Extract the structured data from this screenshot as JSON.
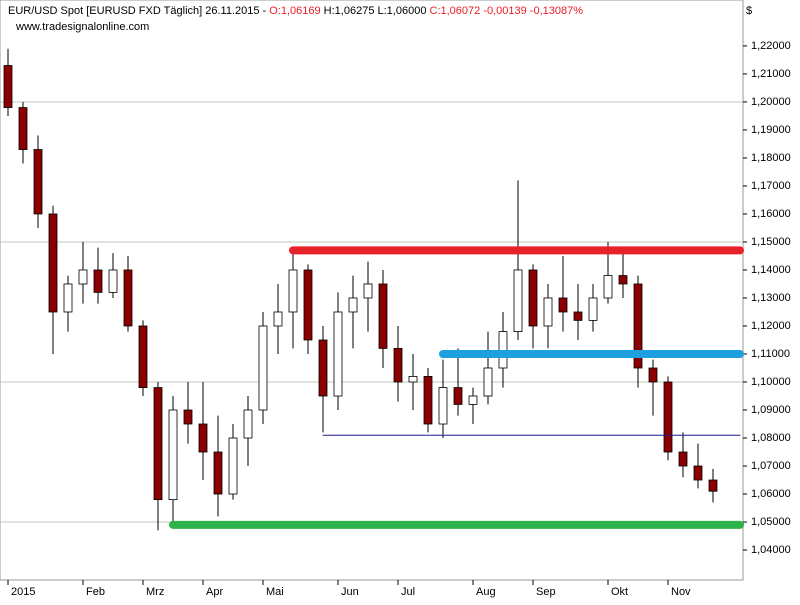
{
  "chart_data": {
    "type": "candlestick",
    "header": {
      "title": "EUR/USD Spot [EURUSD FXD  Täglich] 26.11.2015 - ",
      "open": "O:1,06169",
      "high_low": " H:1,06275 L:1,06000 ",
      "close_change": "C:1,06072 -0,00139 -0,13087%"
    },
    "source": "www.tradesignalonline.com",
    "y_unit": "$",
    "categories": [
      "2015",
      null,
      null,
      null,
      null,
      "Feb",
      null,
      null,
      null,
      "Mrz",
      null,
      null,
      null,
      "Apr",
      null,
      null,
      null,
      "Mai",
      null,
      null,
      null,
      null,
      "Jun",
      null,
      null,
      null,
      "Jul",
      null,
      null,
      null,
      null,
      "Aug",
      null,
      null,
      null,
      "Sep",
      null,
      null,
      null,
      null,
      "Okt",
      null,
      null,
      null,
      "Nov",
      null,
      null,
      null
    ],
    "open": [
      1.213,
      1.198,
      1.183,
      1.16,
      1.125,
      1.135,
      1.14,
      1.132,
      1.14,
      1.12,
      1.098,
      1.058,
      1.09,
      1.085,
      1.075,
      1.06,
      1.08,
      1.09,
      1.12,
      1.125,
      1.14,
      1.115,
      1.095,
      1.125,
      1.13,
      1.135,
      1.112,
      1.1,
      1.102,
      1.085,
      1.098,
      1.092,
      1.095,
      1.105,
      1.118,
      1.14,
      1.12,
      1.13,
      1.125,
      1.122,
      1.13,
      1.138,
      1.135,
      1.105,
      1.1,
      1.075,
      1.07,
      1.065
    ],
    "high": [
      1.219,
      1.2,
      1.188,
      1.163,
      1.138,
      1.15,
      1.148,
      1.146,
      1.145,
      1.122,
      1.1,
      1.095,
      1.1,
      1.1,
      1.088,
      1.085,
      1.095,
      1.125,
      1.135,
      1.147,
      1.142,
      1.12,
      1.132,
      1.138,
      1.143,
      1.14,
      1.12,
      1.11,
      1.105,
      1.108,
      1.112,
      1.098,
      1.118,
      1.125,
      1.172,
      1.142,
      1.135,
      1.145,
      1.135,
      1.135,
      1.15,
      1.148,
      1.138,
      1.108,
      1.102,
      1.082,
      1.078,
      1.069
    ],
    "low": [
      1.195,
      1.178,
      1.155,
      1.11,
      1.118,
      1.128,
      1.128,
      1.13,
      1.118,
      1.095,
      1.047,
      1.05,
      1.078,
      1.065,
      1.052,
      1.058,
      1.07,
      1.085,
      1.11,
      1.112,
      1.11,
      1.082,
      1.09,
      1.112,
      1.118,
      1.105,
      1.093,
      1.09,
      1.082,
      1.08,
      1.088,
      1.085,
      1.092,
      1.098,
      1.115,
      1.112,
      1.112,
      1.118,
      1.115,
      1.118,
      1.128,
      1.13,
      1.098,
      1.088,
      1.072,
      1.066,
      1.062,
      1.057
    ],
    "close": [
      1.198,
      1.183,
      1.16,
      1.125,
      1.135,
      1.14,
      1.132,
      1.14,
      1.12,
      1.098,
      1.058,
      1.09,
      1.085,
      1.075,
      1.06,
      1.08,
      1.09,
      1.12,
      1.125,
      1.14,
      1.115,
      1.095,
      1.125,
      1.13,
      1.135,
      1.112,
      1.1,
      1.102,
      1.085,
      1.098,
      1.092,
      1.095,
      1.105,
      1.118,
      1.14,
      1.12,
      1.13,
      1.125,
      1.122,
      1.13,
      1.138,
      1.135,
      1.105,
      1.1,
      1.075,
      1.07,
      1.065,
      1.061
    ],
    "up_color": "#ffffff",
    "down_color": "#8b0000",
    "levels": [
      {
        "value": 1.147,
        "start": 19,
        "color": "#e8202a",
        "width": 8
      },
      {
        "value": 1.11,
        "start": 29,
        "color": "#1ea0e0",
        "width": 8
      },
      {
        "value": 1.049,
        "start": 11,
        "color": "#2db34a",
        "width": 8
      },
      {
        "value": 1.081,
        "start": 21,
        "color": "#1a1a8c",
        "width": 1
      }
    ],
    "grid_lines": [
      1.05,
      1.1,
      1.15,
      1.2
    ],
    "ylim": [
      1.0293,
      1.2364
    ],
    "yticks": [
      {
        "value": 1.04,
        "label": "1,04000"
      },
      {
        "value": 1.05,
        "label": "1,05000"
      },
      {
        "value": 1.06,
        "label": "1,06000"
      },
      {
        "value": 1.07,
        "label": "1,07000"
      },
      {
        "value": 1.08,
        "label": "1,08000"
      },
      {
        "value": 1.09,
        "label": "1,09000"
      },
      {
        "value": 1.1,
        "label": "1,10000"
      },
      {
        "value": 1.11,
        "label": "1,11000"
      },
      {
        "value": 1.12,
        "label": "1,12000"
      },
      {
        "value": 1.13,
        "label": "1,13000"
      },
      {
        "value": 1.14,
        "label": "1,14000"
      },
      {
        "value": 1.15,
        "label": "1,15000"
      },
      {
        "value": 1.16,
        "label": "1,16000"
      },
      {
        "value": 1.17,
        "label": "1,17000"
      },
      {
        "value": 1.18,
        "label": "1,18000"
      },
      {
        "value": 1.19,
        "label": "1,19000"
      },
      {
        "value": 1.2,
        "label": "1,20000"
      },
      {
        "value": 1.21,
        "label": "1,21000"
      },
      {
        "value": 1.22,
        "label": "1,22000"
      }
    ]
  }
}
